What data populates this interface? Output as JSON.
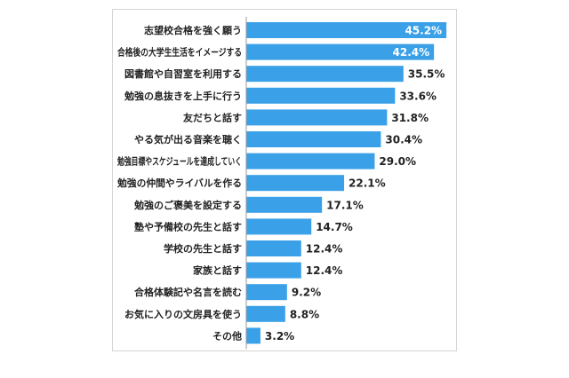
{
  "chart_data": {
    "type": "bar",
    "orientation": "horizontal",
    "categories": [
      "志望校合格を強く願う",
      "合格後の大学生生活をイメージする",
      "図書館や自習室を利用する",
      "勉強の息抜きを上手に行う",
      "友だちと話す",
      "やる気が出る音楽を聴く",
      "勉強目標やスケジュールを達成していく",
      "勉強の仲間やライバルを作る",
      "勉強のご褒美を設定する",
      "塾や予備校の先生と話す",
      "学校の先生と話す",
      "家族と話す",
      "合格体験記や名言を読む",
      "お気に入りの文房具を使う",
      "その他"
    ],
    "values": [
      45.2,
      42.4,
      35.5,
      33.6,
      31.8,
      30.4,
      29.0,
      22.1,
      17.1,
      14.7,
      12.4,
      12.4,
      9.2,
      8.8,
      3.2
    ],
    "value_labels": [
      "45.2%",
      "42.4%",
      "35.5%",
      "33.6%",
      "31.8%",
      "30.4%",
      "29.0%",
      "22.1%",
      "17.1%",
      "14.7%",
      "12.4%",
      "12.4%",
      "9.2%",
      "8.8%",
      "3.2%"
    ],
    "labels_inside_bar_count": 2,
    "xlim": [
      0,
      50
    ],
    "grid": false,
    "legend": "none",
    "title": "",
    "xlabel": "",
    "ylabel": "",
    "colors": {
      "bar": "#3aa0e8",
      "axis": "#9a9a9a",
      "label_inside": "#ffffff",
      "label_outside": "#222222"
    }
  }
}
